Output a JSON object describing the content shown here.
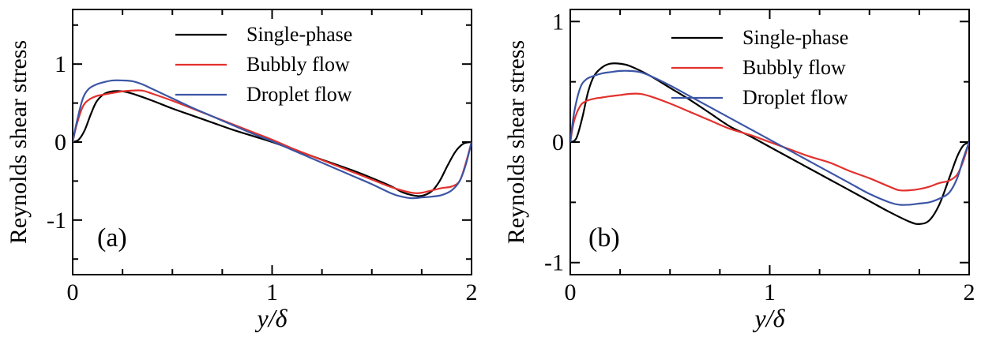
{
  "chart_data": [
    {
      "type": "line",
      "panel_label": "(a)",
      "xlabel": "y/δ",
      "ylabel": "Reynolds shear stress",
      "xlim": [
        0,
        2
      ],
      "ylim": [
        -1.7,
        1.7
      ],
      "xticks": [
        0,
        1,
        2
      ],
      "xtick_labels": [
        "0",
        "1",
        "2"
      ],
      "yticks": [
        -1,
        0,
        1
      ],
      "ytick_labels": [
        "-1",
        "0",
        "1"
      ],
      "legend_position": "top-right",
      "grid": false,
      "series": [
        {
          "name": "Single-phase",
          "color": "#000000",
          "x": [
            0,
            0.03,
            0.06,
            0.09,
            0.12,
            0.16,
            0.2,
            0.25,
            0.3,
            0.4,
            0.5,
            0.6,
            0.7,
            0.8,
            0.9,
            1.0,
            1.1,
            1.2,
            1.3,
            1.4,
            1.5,
            1.6,
            1.65,
            1.7,
            1.75,
            1.8,
            1.84,
            1.88,
            1.92,
            1.96,
            2.0
          ],
          "y": [
            0,
            0.03,
            0.15,
            0.35,
            0.52,
            0.62,
            0.65,
            0.65,
            0.62,
            0.53,
            0.43,
            0.34,
            0.25,
            0.16,
            0.08,
            0.0,
            -0.09,
            -0.18,
            -0.27,
            -0.36,
            -0.46,
            -0.57,
            -0.64,
            -0.68,
            -0.69,
            -0.63,
            -0.5,
            -0.3,
            -0.12,
            -0.02,
            0
          ]
        },
        {
          "name": "Bubbly flow",
          "color": "#e3312d",
          "x": [
            0,
            0.02,
            0.05,
            0.08,
            0.12,
            0.16,
            0.2,
            0.25,
            0.3,
            0.35,
            0.4,
            0.5,
            0.6,
            0.7,
            0.8,
            0.9,
            1.0,
            1.1,
            1.2,
            1.3,
            1.4,
            1.5,
            1.6,
            1.7,
            1.75,
            1.8,
            1.85,
            1.9,
            1.94,
            1.97,
            2.0
          ],
          "y": [
            0,
            0.22,
            0.45,
            0.54,
            0.59,
            0.61,
            0.63,
            0.65,
            0.66,
            0.66,
            0.62,
            0.53,
            0.43,
            0.33,
            0.23,
            0.13,
            0.03,
            -0.08,
            -0.18,
            -0.28,
            -0.38,
            -0.48,
            -0.58,
            -0.65,
            -0.65,
            -0.62,
            -0.59,
            -0.57,
            -0.5,
            -0.28,
            0
          ]
        },
        {
          "name": "Droplet flow",
          "color": "#3c55a5",
          "x": [
            0,
            0.02,
            0.05,
            0.08,
            0.12,
            0.16,
            0.2,
            0.25,
            0.3,
            0.35,
            0.4,
            0.5,
            0.6,
            0.7,
            0.8,
            0.9,
            1.0,
            1.1,
            1.2,
            1.3,
            1.4,
            1.5,
            1.6,
            1.65,
            1.7,
            1.75,
            1.8,
            1.85,
            1.9,
            1.94,
            1.97,
            2.0
          ],
          "y": [
            0,
            0.25,
            0.55,
            0.68,
            0.74,
            0.77,
            0.79,
            0.79,
            0.78,
            0.74,
            0.68,
            0.56,
            0.44,
            0.33,
            0.22,
            0.11,
            0.01,
            -0.1,
            -0.21,
            -0.32,
            -0.43,
            -0.54,
            -0.66,
            -0.7,
            -0.72,
            -0.71,
            -0.7,
            -0.68,
            -0.62,
            -0.5,
            -0.3,
            0
          ]
        }
      ]
    },
    {
      "type": "line",
      "panel_label": "(b)",
      "xlabel": "y/δ",
      "ylabel": "Reynolds shear stress",
      "xlim": [
        0,
        2
      ],
      "ylim": [
        -1.1,
        1.1
      ],
      "xticks": [
        0,
        1,
        2
      ],
      "xtick_labels": [
        "0",
        "1",
        "2"
      ],
      "yticks": [
        -1,
        0,
        1
      ],
      "ytick_labels": [
        "-1",
        "0",
        "1"
      ],
      "legend_position": "top-right",
      "grid": false,
      "series": [
        {
          "name": "Single-phase",
          "color": "#000000",
          "x": [
            0,
            0.03,
            0.06,
            0.09,
            0.12,
            0.16,
            0.2,
            0.25,
            0.3,
            0.4,
            0.5,
            0.6,
            0.7,
            0.8,
            0.9,
            1.0,
            1.1,
            1.2,
            1.3,
            1.4,
            1.5,
            1.6,
            1.7,
            1.75,
            1.8,
            1.85,
            1.9,
            1.94,
            1.97,
            2.0
          ],
          "y": [
            0,
            0.03,
            0.2,
            0.42,
            0.55,
            0.62,
            0.65,
            0.65,
            0.63,
            0.55,
            0.45,
            0.35,
            0.24,
            0.13,
            0.05,
            -0.04,
            -0.13,
            -0.22,
            -0.31,
            -0.4,
            -0.49,
            -0.58,
            -0.66,
            -0.68,
            -0.65,
            -0.52,
            -0.3,
            -0.12,
            -0.03,
            0
          ]
        },
        {
          "name": "Bubbly flow",
          "color": "#e3312d",
          "x": [
            0,
            0.02,
            0.05,
            0.08,
            0.12,
            0.16,
            0.2,
            0.25,
            0.3,
            0.35,
            0.4,
            0.5,
            0.6,
            0.7,
            0.8,
            0.9,
            1.0,
            1.1,
            1.2,
            1.3,
            1.4,
            1.5,
            1.6,
            1.65,
            1.7,
            1.75,
            1.8,
            1.85,
            1.9,
            1.94,
            1.97,
            2.0
          ],
          "y": [
            0,
            0.18,
            0.3,
            0.34,
            0.36,
            0.37,
            0.38,
            0.39,
            0.4,
            0.4,
            0.38,
            0.32,
            0.25,
            0.18,
            0.11,
            0.06,
            0.0,
            -0.06,
            -0.12,
            -0.17,
            -0.24,
            -0.3,
            -0.37,
            -0.4,
            -0.4,
            -0.39,
            -0.37,
            -0.34,
            -0.32,
            -0.27,
            -0.16,
            0
          ]
        },
        {
          "name": "Droplet flow",
          "color": "#3c55a5",
          "x": [
            0,
            0.02,
            0.05,
            0.08,
            0.12,
            0.16,
            0.2,
            0.25,
            0.3,
            0.35,
            0.4,
            0.5,
            0.6,
            0.7,
            0.8,
            0.9,
            1.0,
            1.1,
            1.2,
            1.3,
            1.4,
            1.5,
            1.6,
            1.65,
            1.7,
            1.75,
            1.8,
            1.85,
            1.9,
            1.94,
            1.97,
            2.0
          ],
          "y": [
            0,
            0.25,
            0.45,
            0.52,
            0.55,
            0.57,
            0.58,
            0.59,
            0.59,
            0.58,
            0.55,
            0.47,
            0.38,
            0.29,
            0.2,
            0.11,
            0.02,
            -0.07,
            -0.16,
            -0.25,
            -0.34,
            -0.43,
            -0.5,
            -0.52,
            -0.52,
            -0.51,
            -0.5,
            -0.47,
            -0.42,
            -0.3,
            -0.14,
            0
          ]
        }
      ]
    }
  ]
}
